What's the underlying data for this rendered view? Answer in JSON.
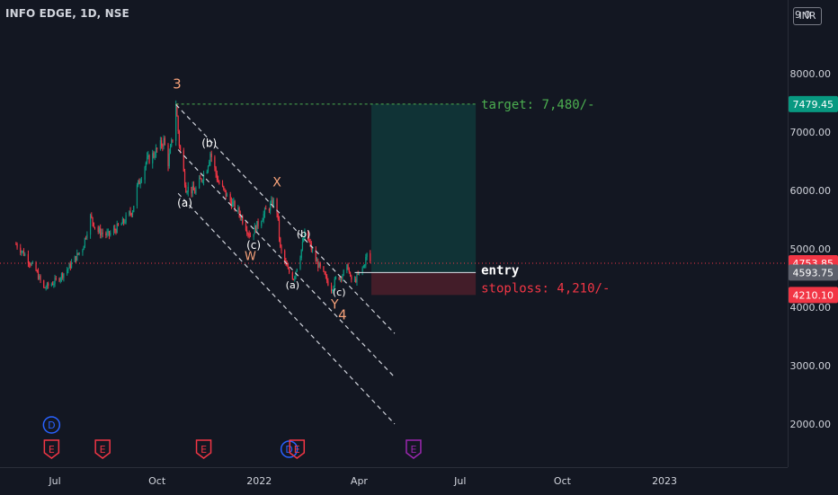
{
  "header": {
    "title": "INFO EDGE, 1D, NSE",
    "currency": "INR",
    "top_right_partial": "9 0"
  },
  "chart_data": {
    "type": "candlestick",
    "ylim": [
      1700,
      8900
    ],
    "y_ticks": [
      "2000.00",
      "3000.00",
      "4000.00",
      "5000.00",
      "6000.00",
      "7000.00",
      "8000.00"
    ],
    "x_ticks": [
      "Jul",
      "Oct",
      "2022",
      "Apr",
      "Jul",
      "Oct",
      "2023"
    ],
    "price_path": [
      [
        "2021-05-27",
        5080
      ],
      [
        "2021-06-04",
        4900
      ],
      [
        "2021-06-14",
        4620
      ],
      [
        "2021-06-21",
        4320
      ],
      [
        "2021-07-01",
        4440
      ],
      [
        "2021-07-12",
        4640
      ],
      [
        "2021-07-26",
        5020
      ],
      [
        "2021-08-02",
        5540
      ],
      [
        "2021-08-09",
        5300
      ],
      [
        "2021-08-18",
        5230
      ],
      [
        "2021-08-31",
        5440
      ],
      [
        "2021-09-09",
        5670
      ],
      [
        "2021-09-13",
        6050
      ],
      [
        "2021-09-21",
        6480
      ],
      [
        "2021-09-28",
        6620
      ],
      [
        "2021-10-07",
        6850
      ],
      [
        "2021-10-11",
        6480
      ],
      [
        "2021-10-15",
        6900
      ],
      [
        "2021-10-18",
        7470
      ],
      [
        "2021-10-21",
        6800
      ],
      [
        "2021-10-27",
        6050
      ],
      [
        "2021-11-04",
        5980
      ],
      [
        "2021-11-15",
        6400
      ],
      [
        "2021-11-18",
        6650
      ],
      [
        "2021-11-25",
        6150
      ],
      [
        "2021-12-03",
        5900
      ],
      [
        "2021-12-15",
        5580
      ],
      [
        "2021-12-24",
        5220
      ],
      [
        "2021-12-31",
        5430
      ],
      [
        "2022-01-07",
        5650
      ],
      [
        "2022-01-14",
        5800
      ],
      [
        "2022-01-17",
        5650
      ],
      [
        "2022-01-20",
        5000
      ],
      [
        "2022-01-27",
        4620
      ],
      [
        "2022-02-01",
        4500
      ],
      [
        "2022-02-07",
        4900
      ],
      [
        "2022-02-11",
        5250
      ],
      [
        "2022-02-14",
        5150
      ],
      [
        "2022-02-21",
        4800
      ],
      [
        "2022-02-28",
        4560
      ],
      [
        "2022-03-07",
        4320
      ],
      [
        "2022-03-11",
        4480
      ],
      [
        "2022-03-17",
        4560
      ],
      [
        "2022-03-22",
        4700
      ],
      [
        "2022-03-24",
        4480
      ],
      [
        "2022-03-28",
        4450
      ],
      [
        "2022-04-05",
        4700
      ],
      [
        "2022-04-08",
        4900
      ],
      [
        "2022-04-11",
        4780
      ]
    ],
    "wave_labels": [
      {
        "text": "3",
        "date": "2021-10-19",
        "price": 7750,
        "color": "#f7a27a",
        "size": 15
      },
      {
        "text": "(a)",
        "date": "2021-10-26",
        "price": 5720,
        "color": "#ffffff",
        "size": 12
      },
      {
        "text": "(b)",
        "date": "2021-11-17",
        "price": 6750,
        "color": "#ffffff",
        "size": 12
      },
      {
        "text": "(c)",
        "date": "2021-12-27",
        "price": 5000,
        "color": "#ffffff",
        "size": 12
      },
      {
        "text": "W",
        "date": "2021-12-24",
        "price": 4810,
        "color": "#f7a27a",
        "size": 13
      },
      {
        "text": "X",
        "date": "2022-01-17",
        "price": 6070,
        "color": "#f7a27a",
        "size": 14
      },
      {
        "text": "(a)",
        "date": "2022-01-31",
        "price": 4320,
        "color": "#ffffff",
        "size": 11
      },
      {
        "text": "(b)",
        "date": "2022-02-10",
        "price": 5200,
        "color": "#ffffff",
        "size": 11
      },
      {
        "text": "(c)",
        "date": "2022-03-14",
        "price": 4200,
        "color": "#ffffff",
        "size": 11
      },
      {
        "text": "Y",
        "date": "2022-03-10",
        "price": 3980,
        "color": "#f7a27a",
        "size": 14
      },
      {
        "text": "4",
        "date": "2022-03-17",
        "price": 3790,
        "color": "#f7a27a",
        "size": 15
      }
    ],
    "channel_lines": [
      {
        "p1": [
          "2021-10-18",
          7470
        ],
        "p2": [
          "2022-05-03",
          3550
        ]
      },
      {
        "p1": [
          "2021-10-20",
          6700
        ],
        "p2": [
          "2022-05-03",
          2800
        ]
      },
      {
        "p1": [
          "2021-10-20",
          5950
        ],
        "p2": [
          "2022-05-03",
          2000
        ]
      }
    ],
    "position": {
      "start": "2022-04-12",
      "end": "2022-07-15",
      "entry": 4593.75,
      "target": 7479.45,
      "stoploss": 4210.1,
      "target_text": "target: 7,480/-",
      "entry_text": "entry",
      "stoploss_text": "stoploss: 4,210/-"
    },
    "current_price": 4753.85,
    "price_labels": [
      {
        "value": 7479.45,
        "text": "7479.45",
        "color": "#089981"
      },
      {
        "value": 4753.85,
        "text": "4753.85",
        "color": "#f23645"
      },
      {
        "value": 4593.75,
        "text": "4593.75",
        "color": "#5d606b"
      },
      {
        "value": 4210.1,
        "text": "4210.10",
        "color": "#f23645"
      }
    ],
    "events": [
      {
        "type": "D",
        "date": "2021-06-28",
        "row": 1,
        "color": "#2962ff"
      },
      {
        "type": "E",
        "date": "2021-06-28",
        "row": 2,
        "color": "#f23645"
      },
      {
        "type": "E",
        "date": "2021-08-13",
        "row": 2,
        "color": "#f23645"
      },
      {
        "type": "E",
        "date": "2021-11-12",
        "row": 2,
        "color": "#f23645"
      },
      {
        "type": "D",
        "date": "2022-01-28",
        "row": 2,
        "color": "#2962ff"
      },
      {
        "type": "E",
        "date": "2022-02-04",
        "row": 2,
        "color": "#f23645"
      },
      {
        "type": "E",
        "date": "2022-05-20",
        "row": 2,
        "color": "#9c27b0"
      }
    ]
  }
}
